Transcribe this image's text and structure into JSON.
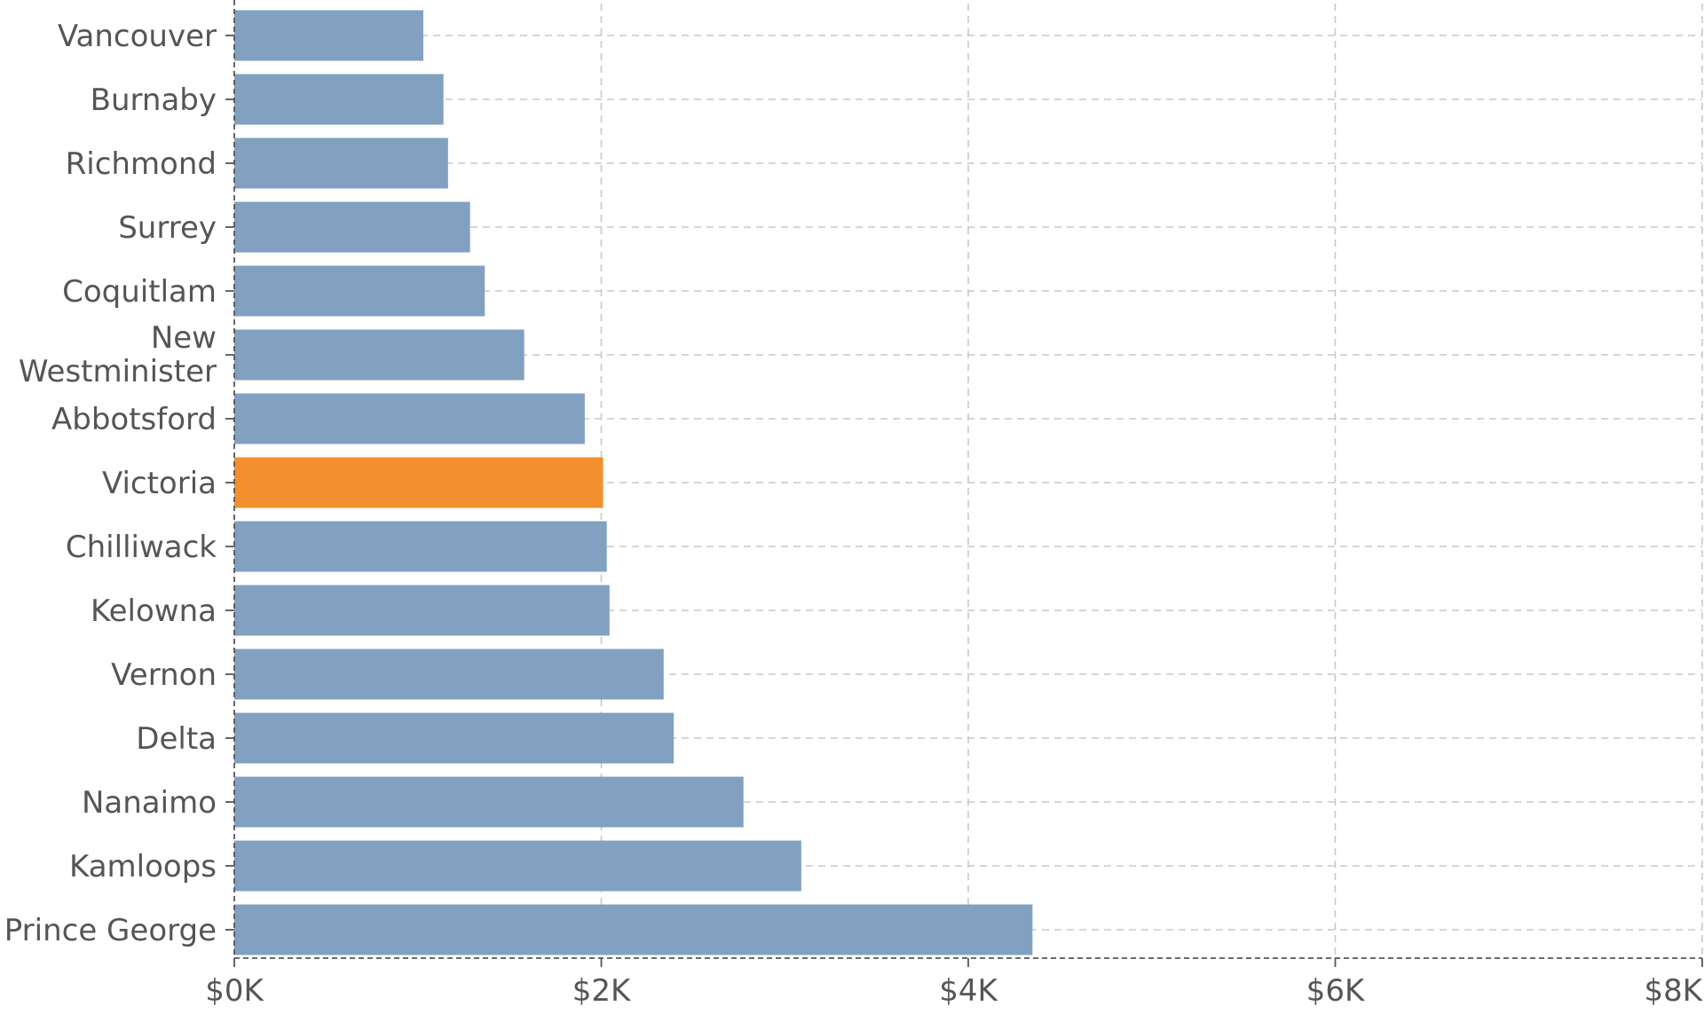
{
  "chart_data": {
    "type": "bar",
    "orientation": "horizontal",
    "categories": [
      "Vancouver",
      "Burnaby",
      "Richmond",
      "Surrey",
      "Coquitlam",
      "New Westminister",
      "Abbotsford",
      "Victoria",
      "Chilliwack",
      "Kelowna",
      "Vernon",
      "Delta",
      "Nanaimo",
      "Kamloops",
      "Prince George"
    ],
    "values": [
      1030,
      1140,
      1165,
      1285,
      1365,
      1580,
      1910,
      2010,
      2030,
      2045,
      2340,
      2395,
      2775,
      3090,
      4350
    ],
    "x_tick_values": [
      0,
      2000,
      4000,
      6000,
      8000
    ],
    "x_tick_labels": [
      "$0K",
      "$2K",
      "$4K",
      "$6K",
      "$8K"
    ],
    "xlim": [
      0,
      8000
    ],
    "title": "",
    "xlabel": "",
    "ylabel": "",
    "grid": true,
    "highlight_category": "Victoria",
    "colors": {
      "bar": "#82a1c0",
      "highlight": "#f28f2e",
      "grid": "#c8c8c8",
      "axis": "#555555",
      "text": "#555555"
    }
  }
}
